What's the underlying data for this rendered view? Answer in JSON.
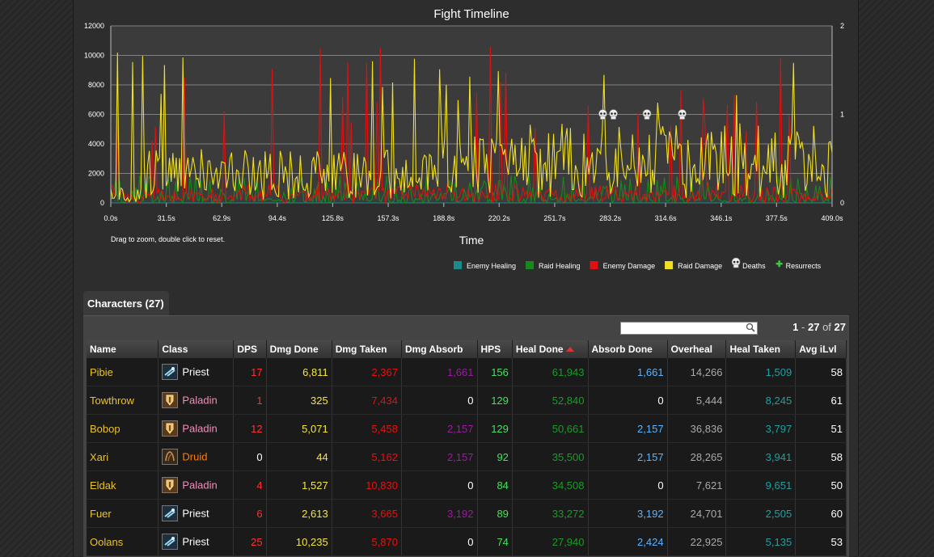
{
  "chart": {
    "title": "Fight Timeline",
    "xlabel": "Time",
    "hint": "Drag to zoom, double click to reset.",
    "legend": [
      {
        "label": "Enemy Healing",
        "color": "#1a8a8a"
      },
      {
        "label": "Raid Healing",
        "color": "#168a1a"
      },
      {
        "label": "Enemy Damage",
        "color": "#e01010"
      },
      {
        "label": "Raid Damage",
        "color": "#f0e020"
      },
      {
        "label": "Deaths",
        "icon": "skull-icon"
      },
      {
        "label": "Resurrects",
        "icon": "plus-icon",
        "color": "#3acc3a"
      }
    ]
  },
  "chart_data": {
    "type": "line",
    "title": "Fight Timeline",
    "xlabel": "Time",
    "x_ticks": [
      "0.0s",
      "31.5s",
      "62.9s",
      "94.4s",
      "125.8s",
      "157.3s",
      "188.8s",
      "220.2s",
      "251.7s",
      "283.2s",
      "314.6s",
      "346.1s",
      "377.5s",
      "409.0s"
    ],
    "y_ticks": [
      "0",
      "2000",
      "4000",
      "6000",
      "8000",
      "10000",
      "12000"
    ],
    "y2_ticks": [
      "0",
      "1",
      "2"
    ],
    "xlim": [
      0,
      409.0
    ],
    "ylim": [
      0,
      12000
    ],
    "y2lim": [
      0,
      2
    ],
    "grid": true,
    "legend_position": "bottom-right",
    "deaths_at": [
      279,
      285,
      304,
      324
    ],
    "deaths_value": 1,
    "series": [
      {
        "name": "Raid Damage",
        "color": "#f0e020",
        "approx_range": [
          0,
          10300
        ]
      },
      {
        "name": "Enemy Damage",
        "color": "#e01010",
        "approx_range": [
          0,
          10600
        ]
      },
      {
        "name": "Raid Healing",
        "color": "#168a1a",
        "approx_range": [
          0,
          2000
        ]
      },
      {
        "name": "Enemy Healing",
        "color": "#1a8a8a",
        "approx_range": [
          0,
          0
        ]
      }
    ]
  },
  "tab": {
    "label": "Characters (27)"
  },
  "search": {
    "value": "",
    "placeholder": ""
  },
  "paging": {
    "from": "1",
    "to": "27",
    "of_label": "of",
    "total": "27",
    "dash": "-"
  },
  "table": {
    "columns": [
      "Name",
      "Class",
      "DPS",
      "Dmg Done",
      "Dmg Taken",
      "Dmg Absorb",
      "HPS",
      "Heal Done",
      "Absorb Done",
      "Overheal",
      "Heal Taken",
      "Avg iLvl"
    ],
    "sorted_column": "Heal Done",
    "rows": [
      {
        "name": "Pibie",
        "class": "Priest",
        "class_color": "#ffffff",
        "icon": "priest-class-icon",
        "dps": "17",
        "dmg_done": "6,811",
        "dmg_taken": "2,367",
        "dmg_absorb": "1,661",
        "hps": "156",
        "heal_done": "61,943",
        "absorb_done": "1,661",
        "overheal": "14,266",
        "heal_taken": "1,509",
        "ilvl": "58"
      },
      {
        "name": "Towthrow",
        "class": "Paladin",
        "class_color": "#f58cba",
        "icon": "paladin-class-icon",
        "dps": "1",
        "dmg_done": "325",
        "dmg_taken": "7,434",
        "dmg_absorb": "0",
        "hps": "129",
        "heal_done": "52,840",
        "absorb_done": "0",
        "overheal": "5,444",
        "heal_taken": "8,245",
        "ilvl": "61"
      },
      {
        "name": "Bobop",
        "class": "Paladin",
        "class_color": "#f58cba",
        "icon": "paladin-class-icon",
        "dps": "12",
        "dmg_done": "5,071",
        "dmg_taken": "5,458",
        "dmg_absorb": "2,157",
        "hps": "129",
        "heal_done": "50,661",
        "absorb_done": "2,157",
        "overheal": "36,836",
        "heal_taken": "3,797",
        "ilvl": "51"
      },
      {
        "name": "Xari",
        "class": "Druid",
        "class_color": "#ff7d0a",
        "icon": "druid-class-icon",
        "dps": "0",
        "dmg_done": "44",
        "dmg_taken": "5,162",
        "dmg_absorb": "2,157",
        "hps": "92",
        "heal_done": "35,500",
        "absorb_done": "2,157",
        "overheal": "28,265",
        "heal_taken": "3,941",
        "ilvl": "58"
      },
      {
        "name": "Eldak",
        "class": "Paladin",
        "class_color": "#f58cba",
        "icon": "paladin-class-icon",
        "dps": "4",
        "dmg_done": "1,527",
        "dmg_taken": "10,830",
        "dmg_absorb": "0",
        "hps": "84",
        "heal_done": "34,508",
        "absorb_done": "0",
        "overheal": "7,621",
        "heal_taken": "9,651",
        "ilvl": "50"
      },
      {
        "name": "Fuer",
        "class": "Priest",
        "class_color": "#ffffff",
        "icon": "priest-class-icon",
        "dps": "6",
        "dmg_done": "2,613",
        "dmg_taken": "3,665",
        "dmg_absorb": "3,192",
        "hps": "89",
        "heal_done": "33,272",
        "absorb_done": "3,192",
        "overheal": "24,701",
        "heal_taken": "2,505",
        "ilvl": "60"
      },
      {
        "name": "Oolans",
        "class": "Priest",
        "class_color": "#ffffff",
        "icon": "priest-class-icon",
        "dps": "25",
        "dmg_done": "10,235",
        "dmg_taken": "5,870",
        "dmg_absorb": "0",
        "hps": "74",
        "heal_done": "27,940",
        "absorb_done": "2,424",
        "overheal": "22,925",
        "heal_taken": "5,135",
        "ilvl": "53"
      }
    ]
  }
}
